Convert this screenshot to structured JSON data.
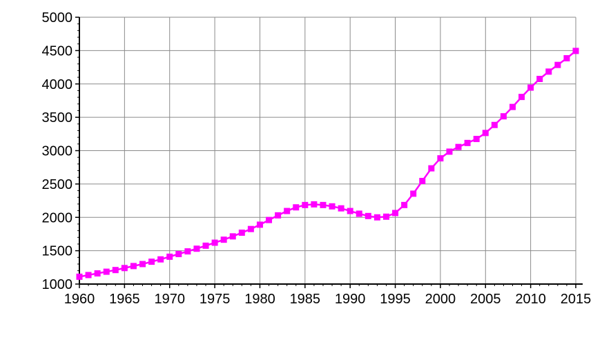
{
  "chart_data": {
    "type": "line",
    "title": "",
    "xlabel": "",
    "ylabel": "",
    "xlim": [
      1960,
      2015
    ],
    "ylim": [
      1000,
      5000
    ],
    "grid": true,
    "x_ticks": [
      "1960",
      "1965",
      "1970",
      "1975",
      "1980",
      "1985",
      "1990",
      "1995",
      "2000",
      "2005",
      "2010",
      "2015"
    ],
    "y_ticks": [
      "1000",
      "1500",
      "2000",
      "2500",
      "3000",
      "3500",
      "4000",
      "4500",
      "5000"
    ],
    "series": [
      {
        "color": "#ff00ff",
        "x": [
          1960,
          1961,
          1962,
          1963,
          1964,
          1965,
          1966,
          1967,
          1968,
          1969,
          1970,
          1971,
          1972,
          1973,
          1974,
          1975,
          1976,
          1977,
          1978,
          1979,
          1980,
          1981,
          1982,
          1983,
          1984,
          1985,
          1986,
          1987,
          1988,
          1989,
          1990,
          1991,
          1992,
          1993,
          1994,
          1995,
          1996,
          1997,
          1998,
          1999,
          2000,
          2001,
          2002,
          2003,
          2004,
          2005,
          2006,
          2007,
          2008,
          2009,
          2010,
          2011,
          2012,
          2013,
          2014,
          2015
        ],
        "values": [
          1110,
          1135,
          1160,
          1185,
          1210,
          1240,
          1270,
          1300,
          1335,
          1370,
          1410,
          1450,
          1490,
          1530,
          1575,
          1620,
          1665,
          1715,
          1770,
          1825,
          1890,
          1960,
          2030,
          2095,
          2150,
          2185,
          2195,
          2185,
          2165,
          2135,
          2095,
          2055,
          2020,
          2000,
          2010,
          2065,
          2185,
          2355,
          2545,
          2735,
          2885,
          2985,
          3055,
          3115,
          3175,
          3265,
          3385,
          3515,
          3655,
          3805,
          3945,
          4075,
          4185,
          4285,
          4385,
          4495
        ]
      }
    ]
  }
}
